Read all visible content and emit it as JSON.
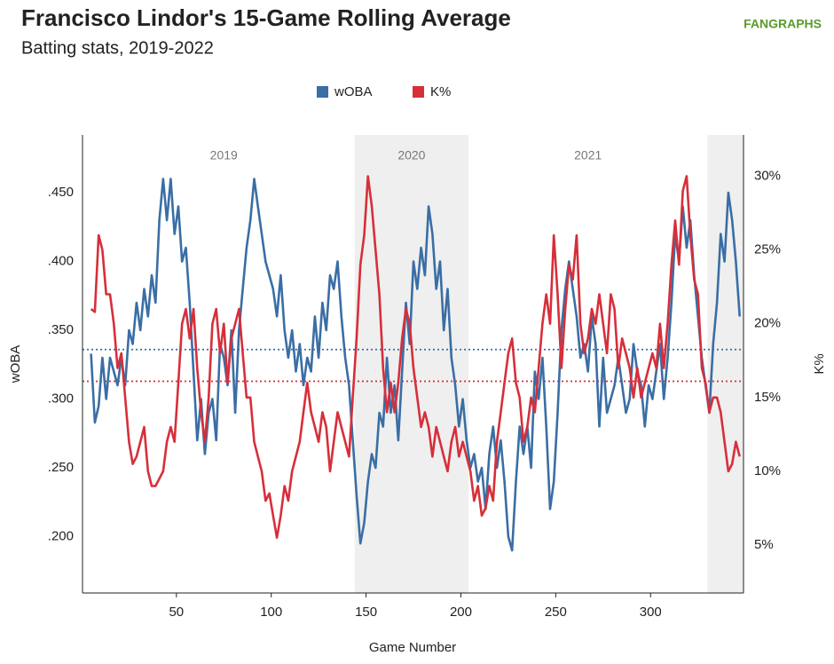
{
  "chart_data": {
    "type": "line",
    "title": "Francisco Lindor's 15-Game Rolling Average",
    "subtitle": "Batting stats, 2019-2022",
    "logo": "FANGRAPHS",
    "x_label": "Game Number",
    "y_label": "wOBA",
    "y2_label": "K%",
    "legend": "top",
    "xlim": [
      0.5,
      349
    ],
    "xticks": [
      50,
      100,
      150,
      200,
      250,
      300
    ],
    "ylim": [
      0.159,
      0.492
    ],
    "yticks": [
      {
        "value": 0.2,
        "label": ".200"
      },
      {
        "value": 0.25,
        "label": ".250"
      },
      {
        "value": 0.3,
        "label": ".300"
      },
      {
        "value": 0.35,
        "label": ".350"
      },
      {
        "value": 0.4,
        "label": ".400"
      },
      {
        "value": 0.45,
        "label": ".450"
      }
    ],
    "y2lim": [
      1.75,
      32.8
    ],
    "y2ticks": [
      {
        "value": 5,
        "label": "5%"
      },
      {
        "value": 10,
        "label": "10%"
      },
      {
        "value": 15,
        "label": "15%"
      },
      {
        "value": 20,
        "label": "20%"
      },
      {
        "value": 25,
        "label": "25%"
      },
      {
        "value": 30,
        "label": "30%"
      }
    ],
    "shaded_ranges": [
      [
        144,
        204
      ],
      [
        330,
        349
      ]
    ],
    "season_labels": [
      {
        "label": "2019",
        "x": 75
      },
      {
        "label": "2020",
        "x": 174
      },
      {
        "label": "2021",
        "x": 267
      }
    ],
    "reference_lines": [
      {
        "axis": "y",
        "value": 0.336,
        "color": "#3a6ea5"
      },
      {
        "axis": "y2",
        "value": 16.1,
        "color": "#d62f3a"
      }
    ],
    "x": [
      5,
      7,
      9,
      11,
      13,
      15,
      17,
      19,
      21,
      23,
      25,
      27,
      29,
      31,
      33,
      35,
      37,
      39,
      41,
      43,
      45,
      47,
      49,
      51,
      53,
      55,
      57,
      59,
      61,
      63,
      65,
      67,
      69,
      71,
      73,
      75,
      77,
      79,
      81,
      83,
      85,
      87,
      89,
      91,
      93,
      95,
      97,
      99,
      101,
      103,
      105,
      107,
      109,
      111,
      113,
      115,
      117,
      119,
      121,
      123,
      125,
      127,
      129,
      131,
      133,
      135,
      137,
      139,
      141,
      143,
      145,
      147,
      149,
      151,
      153,
      155,
      157,
      159,
      161,
      163,
      165,
      167,
      169,
      171,
      173,
      175,
      177,
      179,
      181,
      183,
      185,
      187,
      189,
      191,
      193,
      195,
      197,
      199,
      201,
      203,
      205,
      207,
      209,
      211,
      213,
      215,
      217,
      219,
      221,
      223,
      225,
      227,
      229,
      231,
      233,
      235,
      237,
      239,
      241,
      243,
      245,
      247,
      249,
      251,
      253,
      255,
      257,
      259,
      261,
      263,
      265,
      267,
      269,
      271,
      273,
      275,
      277,
      279,
      281,
      283,
      285,
      287,
      289,
      291,
      293,
      295,
      297,
      299,
      301,
      303,
      305,
      307,
      309,
      311,
      313,
      315,
      317,
      319,
      321,
      323,
      325,
      327,
      329,
      331,
      333,
      335,
      337,
      339,
      341,
      343,
      345,
      347
    ],
    "series": [
      {
        "name": "wOBA",
        "color": "#3a6ea5",
        "axis": "y",
        "values": [
          0.333,
          0.283,
          0.295,
          0.33,
          0.3,
          0.33,
          0.32,
          0.31,
          0.33,
          0.31,
          0.35,
          0.34,
          0.37,
          0.35,
          0.38,
          0.36,
          0.39,
          0.37,
          0.43,
          0.46,
          0.43,
          0.46,
          0.42,
          0.44,
          0.4,
          0.41,
          0.37,
          0.32,
          0.27,
          0.3,
          0.26,
          0.29,
          0.3,
          0.27,
          0.34,
          0.33,
          0.31,
          0.35,
          0.29,
          0.35,
          0.38,
          0.41,
          0.43,
          0.46,
          0.44,
          0.42,
          0.4,
          0.39,
          0.38,
          0.36,
          0.39,
          0.35,
          0.33,
          0.35,
          0.32,
          0.34,
          0.31,
          0.33,
          0.32,
          0.36,
          0.33,
          0.37,
          0.35,
          0.39,
          0.38,
          0.4,
          0.36,
          0.33,
          0.31,
          0.27,
          0.23,
          0.195,
          0.21,
          0.24,
          0.26,
          0.25,
          0.29,
          0.28,
          0.33,
          0.29,
          0.31,
          0.27,
          0.32,
          0.37,
          0.34,
          0.4,
          0.38,
          0.41,
          0.39,
          0.44,
          0.42,
          0.38,
          0.4,
          0.35,
          0.38,
          0.33,
          0.31,
          0.28,
          0.3,
          0.27,
          0.25,
          0.26,
          0.24,
          0.25,
          0.22,
          0.26,
          0.28,
          0.25,
          0.27,
          0.24,
          0.2,
          0.19,
          0.24,
          0.28,
          0.26,
          0.28,
          0.25,
          0.32,
          0.3,
          0.33,
          0.28,
          0.22,
          0.24,
          0.29,
          0.35,
          0.38,
          0.4,
          0.38,
          0.36,
          0.33,
          0.34,
          0.32,
          0.36,
          0.34,
          0.28,
          0.33,
          0.29,
          0.3,
          0.31,
          0.33,
          0.31,
          0.29,
          0.3,
          0.34,
          0.32,
          0.31,
          0.28,
          0.31,
          0.3,
          0.32,
          0.34,
          0.3,
          0.33,
          0.37,
          0.42,
          0.4,
          0.44,
          0.41,
          0.43,
          0.39,
          0.36,
          0.33,
          0.31,
          0.29,
          0.34,
          0.37,
          0.42,
          0.4,
          0.45,
          0.43,
          0.4,
          0.36
        ]
      },
      {
        "name": "K%",
        "color": "#d62f3a",
        "axis": "y2",
        "values": [
          21,
          20.8,
          26,
          25,
          22,
          22,
          20,
          17,
          18,
          15,
          12,
          10.5,
          11,
          12,
          13,
          10,
          9,
          9,
          9.5,
          10,
          12,
          13,
          12,
          16,
          20,
          21,
          19,
          21,
          17,
          14,
          12,
          15,
          20,
          21,
          18,
          20,
          16,
          19,
          20,
          21,
          18,
          15,
          15,
          12,
          11,
          10,
          8,
          8.5,
          7,
          5.5,
          7,
          9,
          8,
          10,
          11,
          12,
          14,
          16,
          14,
          13,
          12,
          14,
          13,
          10,
          12,
          14,
          13,
          12,
          11,
          15,
          19,
          24,
          26,
          30,
          28,
          25,
          22,
          17,
          14,
          16,
          14,
          16,
          19,
          21,
          20,
          17,
          15,
          13,
          14,
          13,
          11,
          13,
          12,
          11,
          10,
          12,
          13,
          11,
          12,
          11,
          10,
          8,
          9,
          7,
          7.5,
          9,
          8,
          12,
          14,
          16,
          18,
          19,
          16,
          15,
          12,
          13,
          15,
          14,
          17,
          20,
          22,
          20,
          26,
          22,
          17,
          21,
          24,
          23,
          26,
          20,
          18,
          19,
          21,
          20,
          22,
          20,
          18,
          22,
          21,
          17,
          19,
          18,
          17,
          15,
          17,
          15,
          16,
          17,
          18,
          17,
          20,
          17,
          20,
          24,
          27,
          24,
          29,
          30,
          26,
          23,
          22,
          17,
          16,
          14,
          15,
          15,
          14,
          12,
          10,
          10.5,
          12,
          11
        ]
      }
    ]
  }
}
